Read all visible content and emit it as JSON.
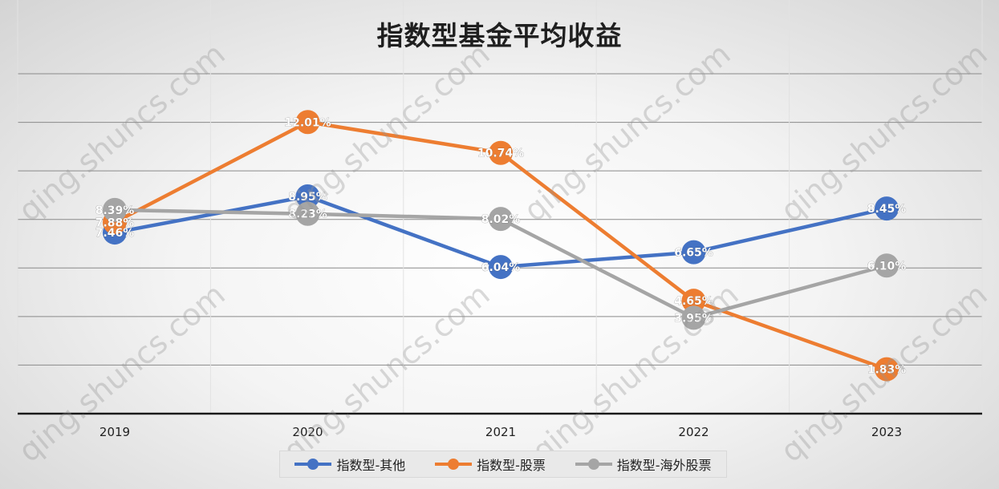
{
  "chart_data": {
    "type": "line",
    "title": "指数型基金平均收益",
    "categories": [
      "2019",
      "2020",
      "2021",
      "2022",
      "2023"
    ],
    "series": [
      {
        "name": "指数型-其他",
        "color": "#4472C4",
        "values": [
          7.46,
          8.95,
          6.04,
          6.65,
          8.45
        ],
        "labels": [
          "7.46%",
          "8.95%",
          "6.04%",
          "6.65%",
          "8.45%"
        ]
      },
      {
        "name": "指数型-股票",
        "color": "#ED7D31",
        "values": [
          7.88,
          12.01,
          10.74,
          4.65,
          1.83
        ],
        "labels": [
          "7.88%",
          "12.01%",
          "10.74%",
          "4.65%",
          "1.83%"
        ]
      },
      {
        "name": "指数型-海外股票",
        "color": "#A5A5A5",
        "values": [
          8.39,
          8.23,
          8.02,
          3.95,
          6.1
        ],
        "labels": [
          "8.39%",
          "8.23%",
          "8.02%",
          "3.95%",
          "6.10%"
        ]
      }
    ],
    "ylim": [
      0,
      14
    ],
    "grid": true,
    "y_axis_labels_visible": false,
    "legend_position": "bottom"
  },
  "watermark": "qing.shuncs.com"
}
